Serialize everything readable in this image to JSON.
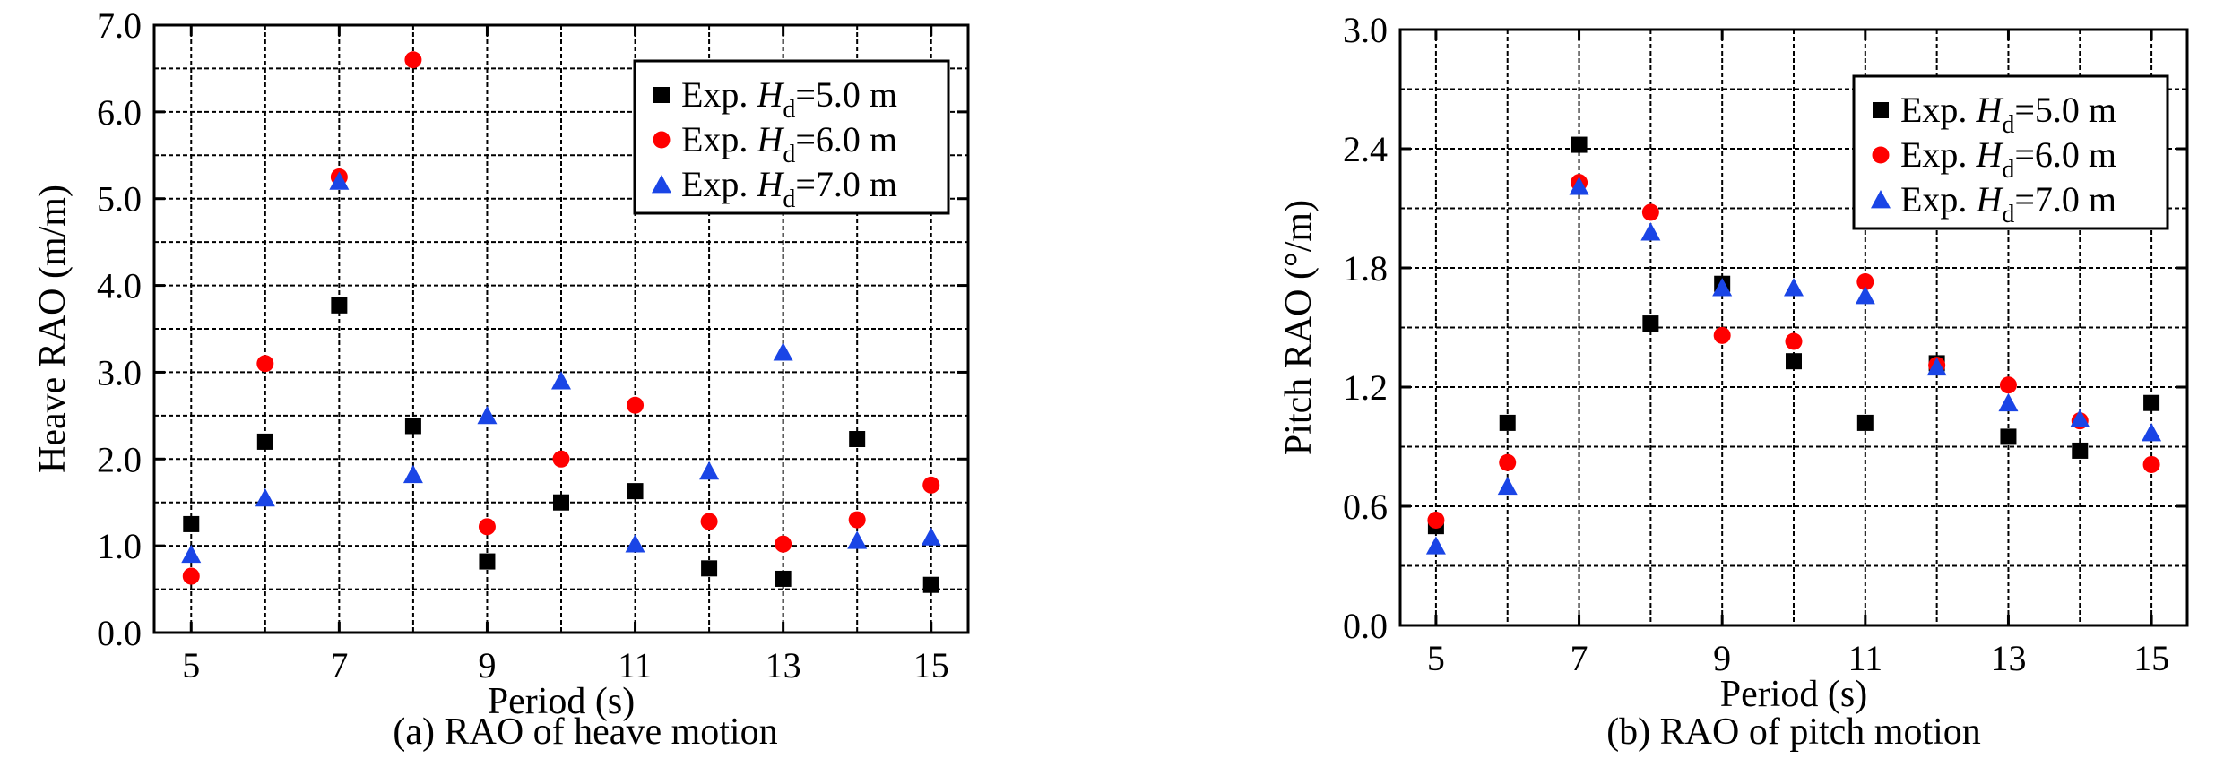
{
  "chart_data": [
    {
      "type": "scatter",
      "xlabel": "Period (s)",
      "ylabel": "Heave RAO (m/m)",
      "caption": "(a) RAO of heave motion",
      "xlim": [
        4.5,
        15.5
      ],
      "ylim": [
        0.0,
        7.0
      ],
      "xticks": [
        5,
        7,
        9,
        11,
        13,
        15
      ],
      "xtick_labels": [
        "5",
        "7",
        "9",
        "11",
        "13",
        "15"
      ],
      "yticks": [
        0,
        1,
        2,
        3,
        4,
        5,
        6,
        7
      ],
      "ytick_labels": [
        "0.0",
        "1.0",
        "2.0",
        "3.0",
        "4.0",
        "5.0",
        "6.0",
        "7.0"
      ],
      "grid": true,
      "legend_position": "top-right",
      "series": [
        {
          "name": "Exp. Hd=5.0 m",
          "marker": "square",
          "color": "#000000",
          "x": [
            5,
            6,
            7,
            8,
            9,
            10,
            11,
            12,
            13,
            14,
            15
          ],
          "y": [
            1.25,
            2.2,
            3.77,
            2.38,
            0.82,
            1.5,
            1.63,
            0.74,
            0.62,
            2.23,
            0.55
          ]
        },
        {
          "name": "Exp. Hd=6.0 m",
          "marker": "circle",
          "color": "#ff0000",
          "x": [
            5,
            6,
            7,
            8,
            9,
            10,
            11,
            12,
            13,
            14,
            15
          ],
          "y": [
            0.65,
            3.1,
            5.25,
            6.6,
            1.22,
            2.0,
            2.62,
            1.28,
            1.02,
            1.3,
            1.7
          ]
        },
        {
          "name": "Exp. Hd=7.0 m",
          "marker": "triangle",
          "color": "#1a45e6",
          "x": [
            5,
            6,
            7,
            8,
            9,
            10,
            11,
            12,
            13,
            14,
            15
          ],
          "y": [
            0.9,
            1.55,
            5.2,
            1.82,
            2.5,
            2.9,
            1.02,
            1.86,
            3.23,
            1.06,
            1.1
          ]
        }
      ]
    },
    {
      "type": "scatter",
      "xlabel": "Period (s)",
      "ylabel": "Pitch RAO (°/m)",
      "caption": "(b) RAO of pitch motion",
      "xlim": [
        4.5,
        15.5
      ],
      "ylim": [
        0.0,
        3.0
      ],
      "xticks": [
        5,
        7,
        9,
        11,
        13,
        15
      ],
      "xtick_labels": [
        "5",
        "7",
        "9",
        "11",
        "13",
        "15"
      ],
      "yticks": [
        0.0,
        0.6,
        1.2,
        1.8,
        2.4,
        3.0
      ],
      "ytick_labels": [
        "0.0",
        "0.6",
        "1.2",
        "1.8",
        "2.4",
        "3.0"
      ],
      "grid": true,
      "legend_position": "top-right",
      "series": [
        {
          "name": "Exp. Hd=5.0 m",
          "marker": "square",
          "color": "#000000",
          "x": [
            5,
            6,
            7,
            8,
            9,
            10,
            11,
            12,
            13,
            14,
            15
          ],
          "y": [
            0.5,
            1.02,
            2.42,
            1.52,
            1.72,
            1.33,
            1.02,
            1.32,
            0.95,
            0.88,
            1.12
          ]
        },
        {
          "name": "Exp. Hd=6.0 m",
          "marker": "circle",
          "color": "#ff0000",
          "x": [
            5,
            6,
            7,
            8,
            9,
            10,
            11,
            12,
            13,
            14,
            15
          ],
          "y": [
            0.53,
            0.82,
            2.23,
            2.08,
            1.46,
            1.43,
            1.73,
            1.31,
            1.21,
            1.03,
            0.81
          ]
        },
        {
          "name": "Exp. Hd=7.0 m",
          "marker": "triangle",
          "color": "#1a45e6",
          "x": [
            5,
            6,
            7,
            8,
            9,
            10,
            11,
            12,
            13,
            14,
            15
          ],
          "y": [
            0.4,
            0.7,
            2.21,
            1.98,
            1.7,
            1.7,
            1.66,
            1.3,
            1.12,
            1.04,
            0.97
          ]
        }
      ]
    }
  ]
}
